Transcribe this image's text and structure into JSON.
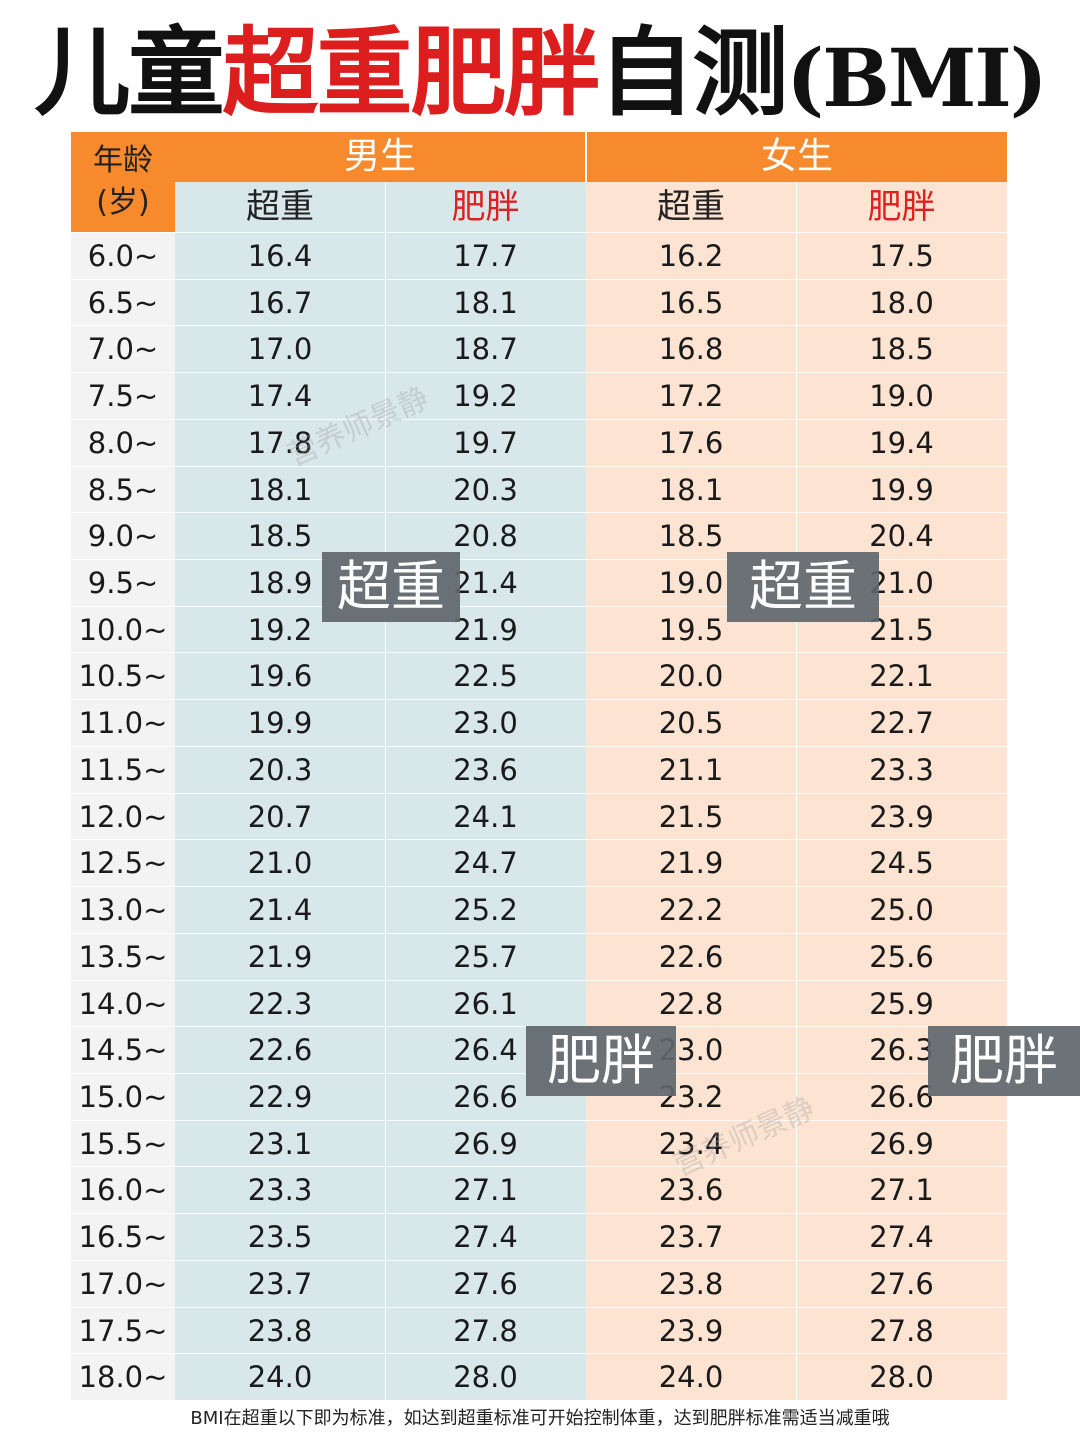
{
  "title": {
    "part1": "儿童",
    "part2": "超重肥胖",
    "part3": "自测",
    "part4": "(BMI)"
  },
  "colors": {
    "header_orange": "#f68a2c",
    "boys_bg": "#d8e7ea",
    "girls_bg": "#fde3d1",
    "title_red": "#dd1e1e",
    "obese_label_red": "#e02020",
    "tag_gray": "#5f676c"
  },
  "header": {
    "age_line1": "年龄",
    "age_line2": "(岁)",
    "boys": "男生",
    "girls": "女生",
    "boys_overweight": "超重",
    "boys_obese": "肥胖",
    "girls_overweight": "超重",
    "girls_obese": "肥胖"
  },
  "rows": [
    [
      "6.0~",
      "16.4",
      "17.7",
      "16.2",
      "17.5"
    ],
    [
      "6.5~",
      "16.7",
      "18.1",
      "16.5",
      "18.0"
    ],
    [
      "7.0~",
      "17.0",
      "18.7",
      "16.8",
      "18.5"
    ],
    [
      "7.5~",
      "17.4",
      "19.2",
      "17.2",
      "19.0"
    ],
    [
      "8.0~",
      "17.8",
      "19.7",
      "17.6",
      "19.4"
    ],
    [
      "8.5~",
      "18.1",
      "20.3",
      "18.1",
      "19.9"
    ],
    [
      "9.0~",
      "18.5",
      "20.8",
      "18.5",
      "20.4"
    ],
    [
      "9.5~",
      "18.9",
      "21.4",
      "19.0",
      "21.0"
    ],
    [
      "10.0~",
      "19.2",
      "21.9",
      "19.5",
      "21.5"
    ],
    [
      "10.5~",
      "19.6",
      "22.5",
      "20.0",
      "22.1"
    ],
    [
      "11.0~",
      "19.9",
      "23.0",
      "20.5",
      "22.7"
    ],
    [
      "11.5~",
      "20.3",
      "23.6",
      "21.1",
      "23.3"
    ],
    [
      "12.0~",
      "20.7",
      "24.1",
      "21.5",
      "23.9"
    ],
    [
      "12.5~",
      "21.0",
      "24.7",
      "21.9",
      "24.5"
    ],
    [
      "13.0~",
      "21.4",
      "25.2",
      "22.2",
      "25.0"
    ],
    [
      "13.5~",
      "21.9",
      "25.7",
      "22.6",
      "25.6"
    ],
    [
      "14.0~",
      "22.3",
      "26.1",
      "22.8",
      "25.9"
    ],
    [
      "14.5~",
      "22.6",
      "26.4",
      "23.0",
      "26.3"
    ],
    [
      "15.0~",
      "22.9",
      "26.6",
      "23.2",
      "26.6"
    ],
    [
      "15.5~",
      "23.1",
      "26.9",
      "23.4",
      "26.9"
    ],
    [
      "16.0~",
      "23.3",
      "27.1",
      "23.6",
      "27.1"
    ],
    [
      "16.5~",
      "23.5",
      "27.4",
      "23.7",
      "27.4"
    ],
    [
      "17.0~",
      "23.7",
      "27.6",
      "23.8",
      "27.6"
    ],
    [
      "17.5~",
      "23.8",
      "27.8",
      "23.9",
      "27.8"
    ],
    [
      "18.0~",
      "24.0",
      "28.0",
      "24.0",
      "28.0"
    ]
  ],
  "tags": {
    "boys_overweight": "超重",
    "girls_overweight": "超重",
    "boys_obese": "肥胖",
    "girls_obese": "肥胖"
  },
  "watermark": "营养师景静",
  "footer": "BMI在超重以下即为标准，如达到超重标准可开始控制体重，达到肥胖标准需适当减重哦"
}
